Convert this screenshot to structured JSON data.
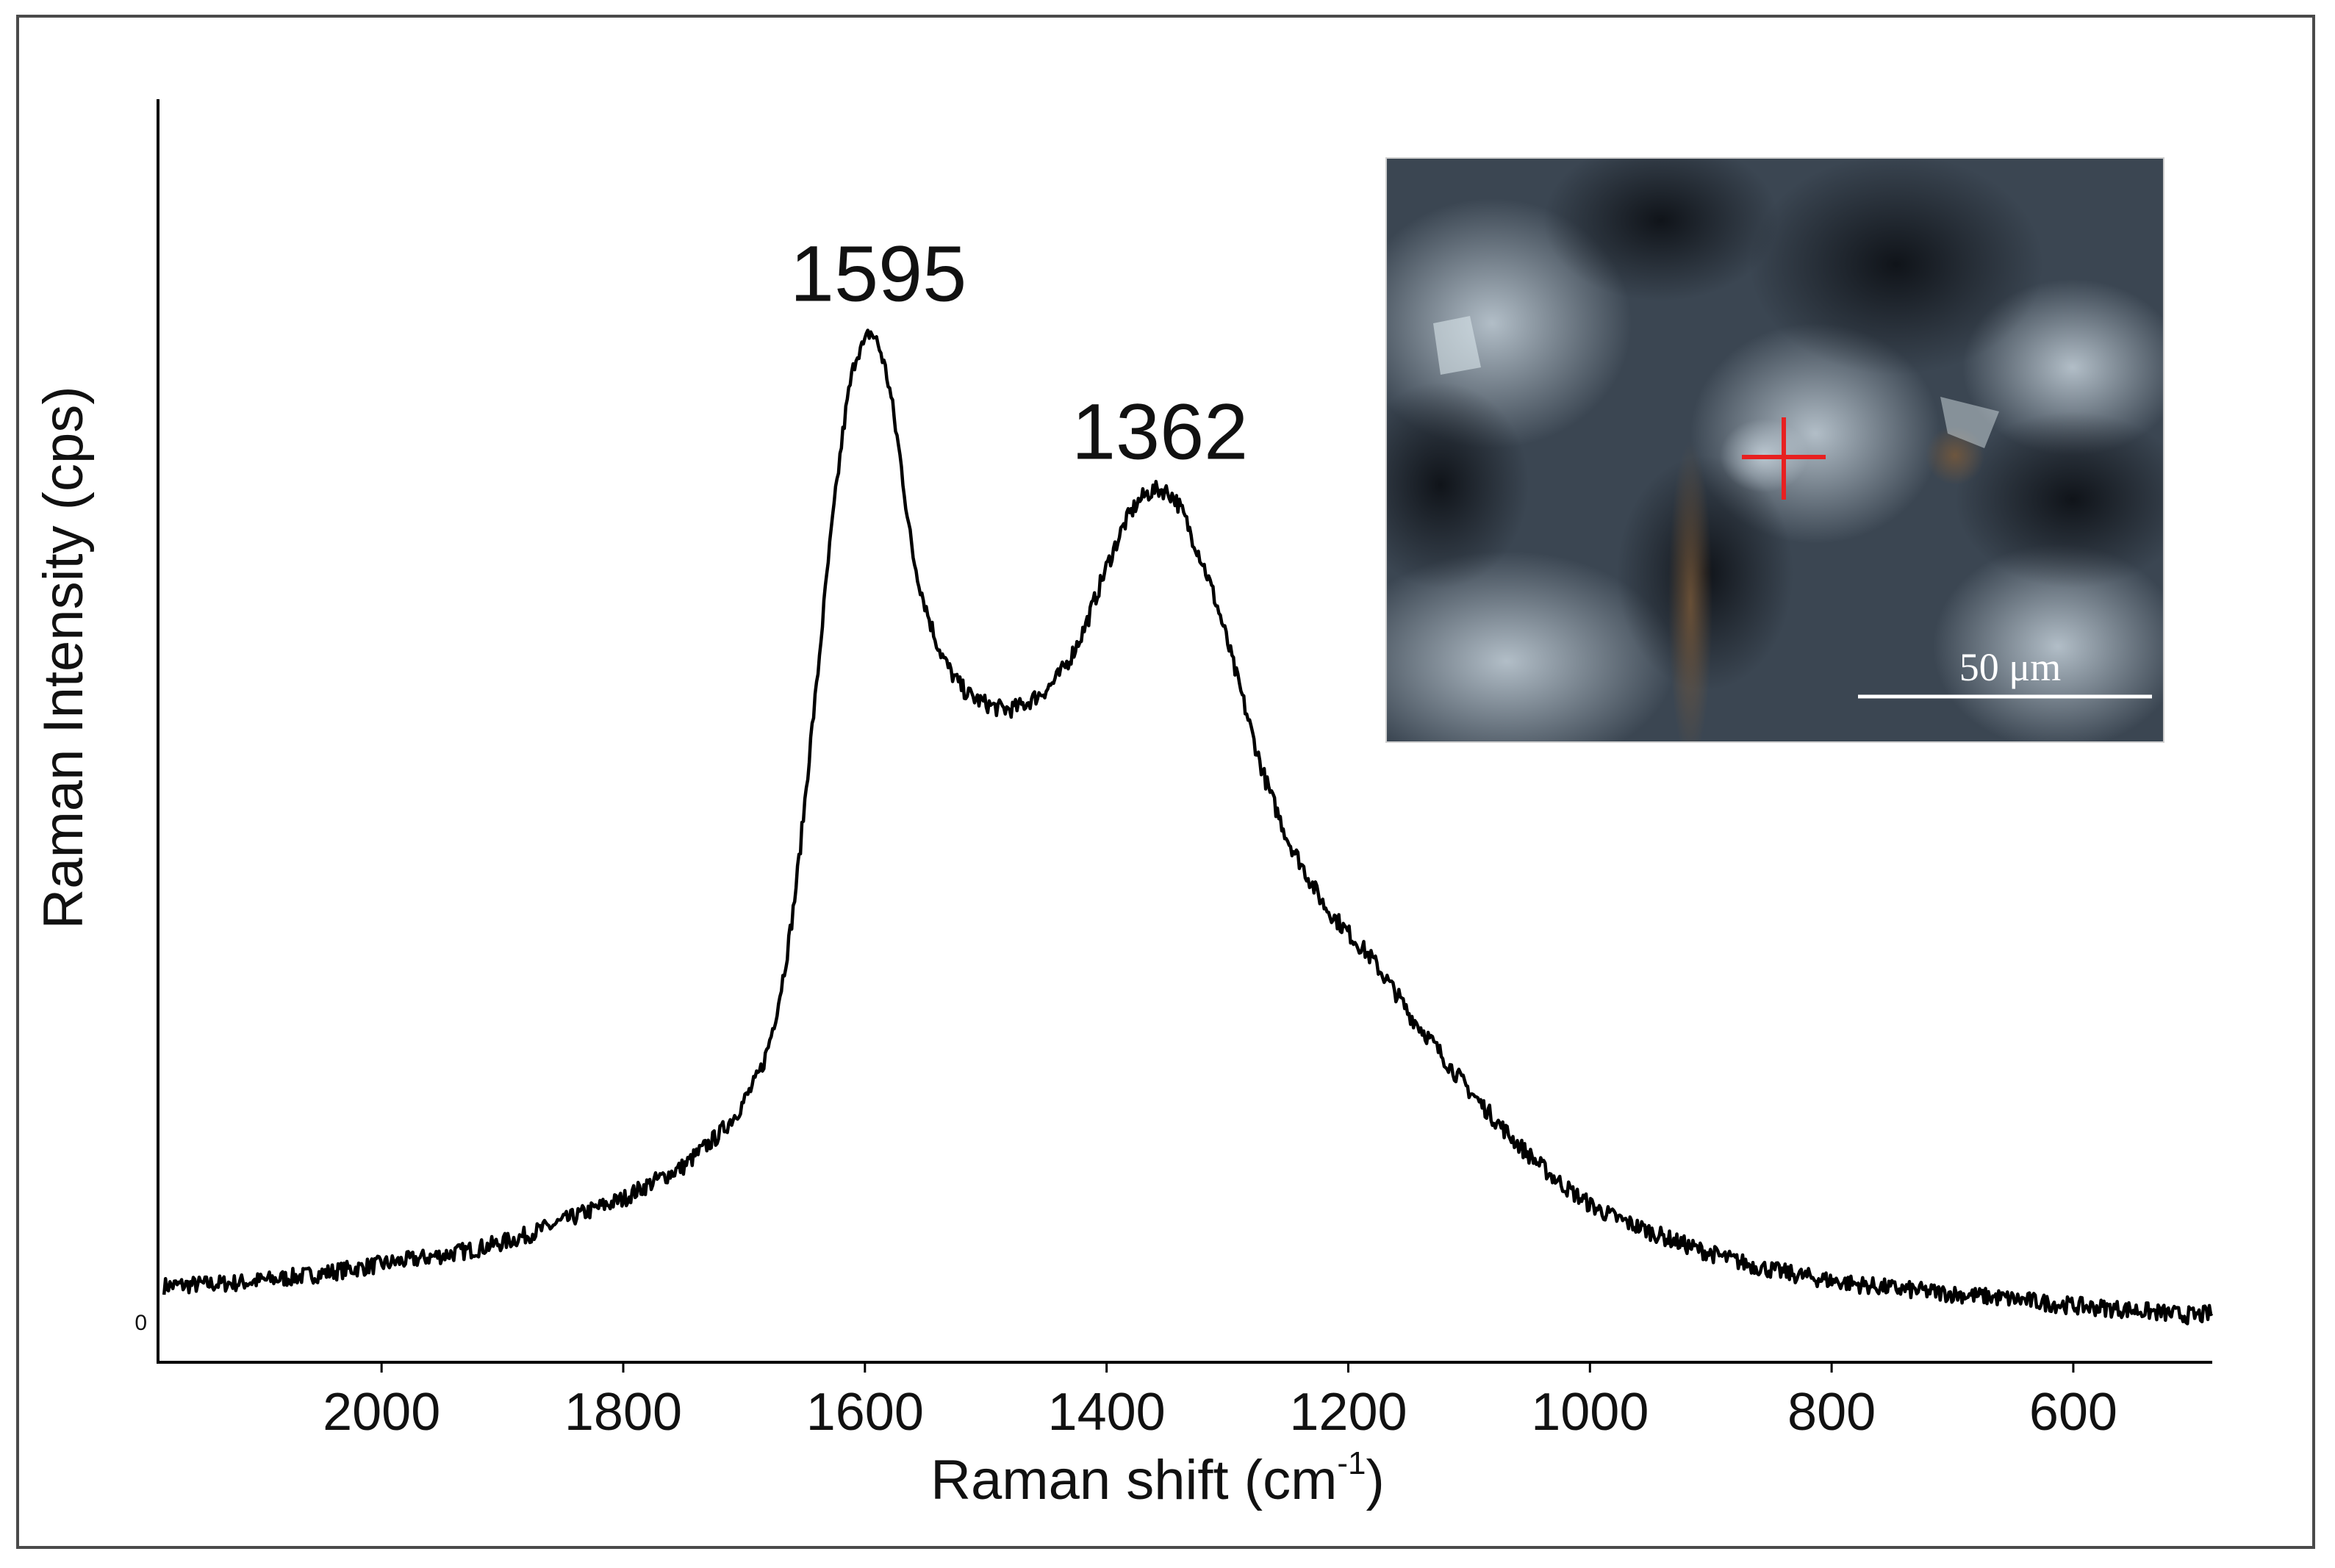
{
  "chart_data": {
    "type": "line",
    "xlabel": "Raman shift (cm",
    "xlabel_superscript": "-1",
    "xlabel_suffix": ")",
    "ylabel": "Raman Intensity (cps)",
    "y_zero_label": "0",
    "x_reversed": true,
    "xlim": [
      2185,
      485
    ],
    "ylim": [
      -4,
      112
    ],
    "x_ticks": [
      2000,
      1800,
      1600,
      1400,
      1200,
      1000,
      800,
      600
    ],
    "x_tick_labels": [
      "2000",
      "1800",
      "1600",
      "1400",
      "1200",
      "1000",
      "800",
      "600"
    ],
    "grid": false,
    "series": [
      {
        "color": "#000000",
        "x": [
          2180,
          2100,
          2000,
          1900,
          1800,
          1750,
          1720,
          1700,
          1680,
          1660,
          1640,
          1625,
          1610,
          1600,
          1595,
          1585,
          1575,
          1560,
          1540,
          1520,
          1500,
          1480,
          1460,
          1440,
          1420,
          1400,
          1380,
          1362,
          1345,
          1330,
          1310,
          1290,
          1270,
          1250,
          1220,
          1180,
          1150,
          1100,
          1050,
          1000,
          950,
          900,
          850,
          800,
          750,
          700,
          650,
          600,
          550,
          500,
          485
        ],
        "y": [
          3,
          3.5,
          5,
          7,
          11,
          14,
          17,
          20,
          25,
          37,
          58,
          75,
          87,
          89.5,
          90.5,
          88,
          82,
          70,
          62,
          58,
          56.5,
          56,
          57,
          59,
          63,
          69,
          74,
          76,
          75.5,
          72,
          66,
          58,
          50,
          44,
          38,
          33,
          28,
          21,
          15,
          10.5,
          8,
          6,
          4.5,
          3.5,
          2.8,
          2.3,
          1.8,
          1.2,
          0.8,
          0.3,
          0.5
        ]
      }
    ],
    "annotations": [
      {
        "text": "1595",
        "x": 1595,
        "y": 90.5
      },
      {
        "text": "1362",
        "x": 1362,
        "y": 76
      }
    ]
  },
  "inset": {
    "description_label": "micrograph",
    "scale_bar_label": "50 μm",
    "marker_color": "#e82020"
  }
}
